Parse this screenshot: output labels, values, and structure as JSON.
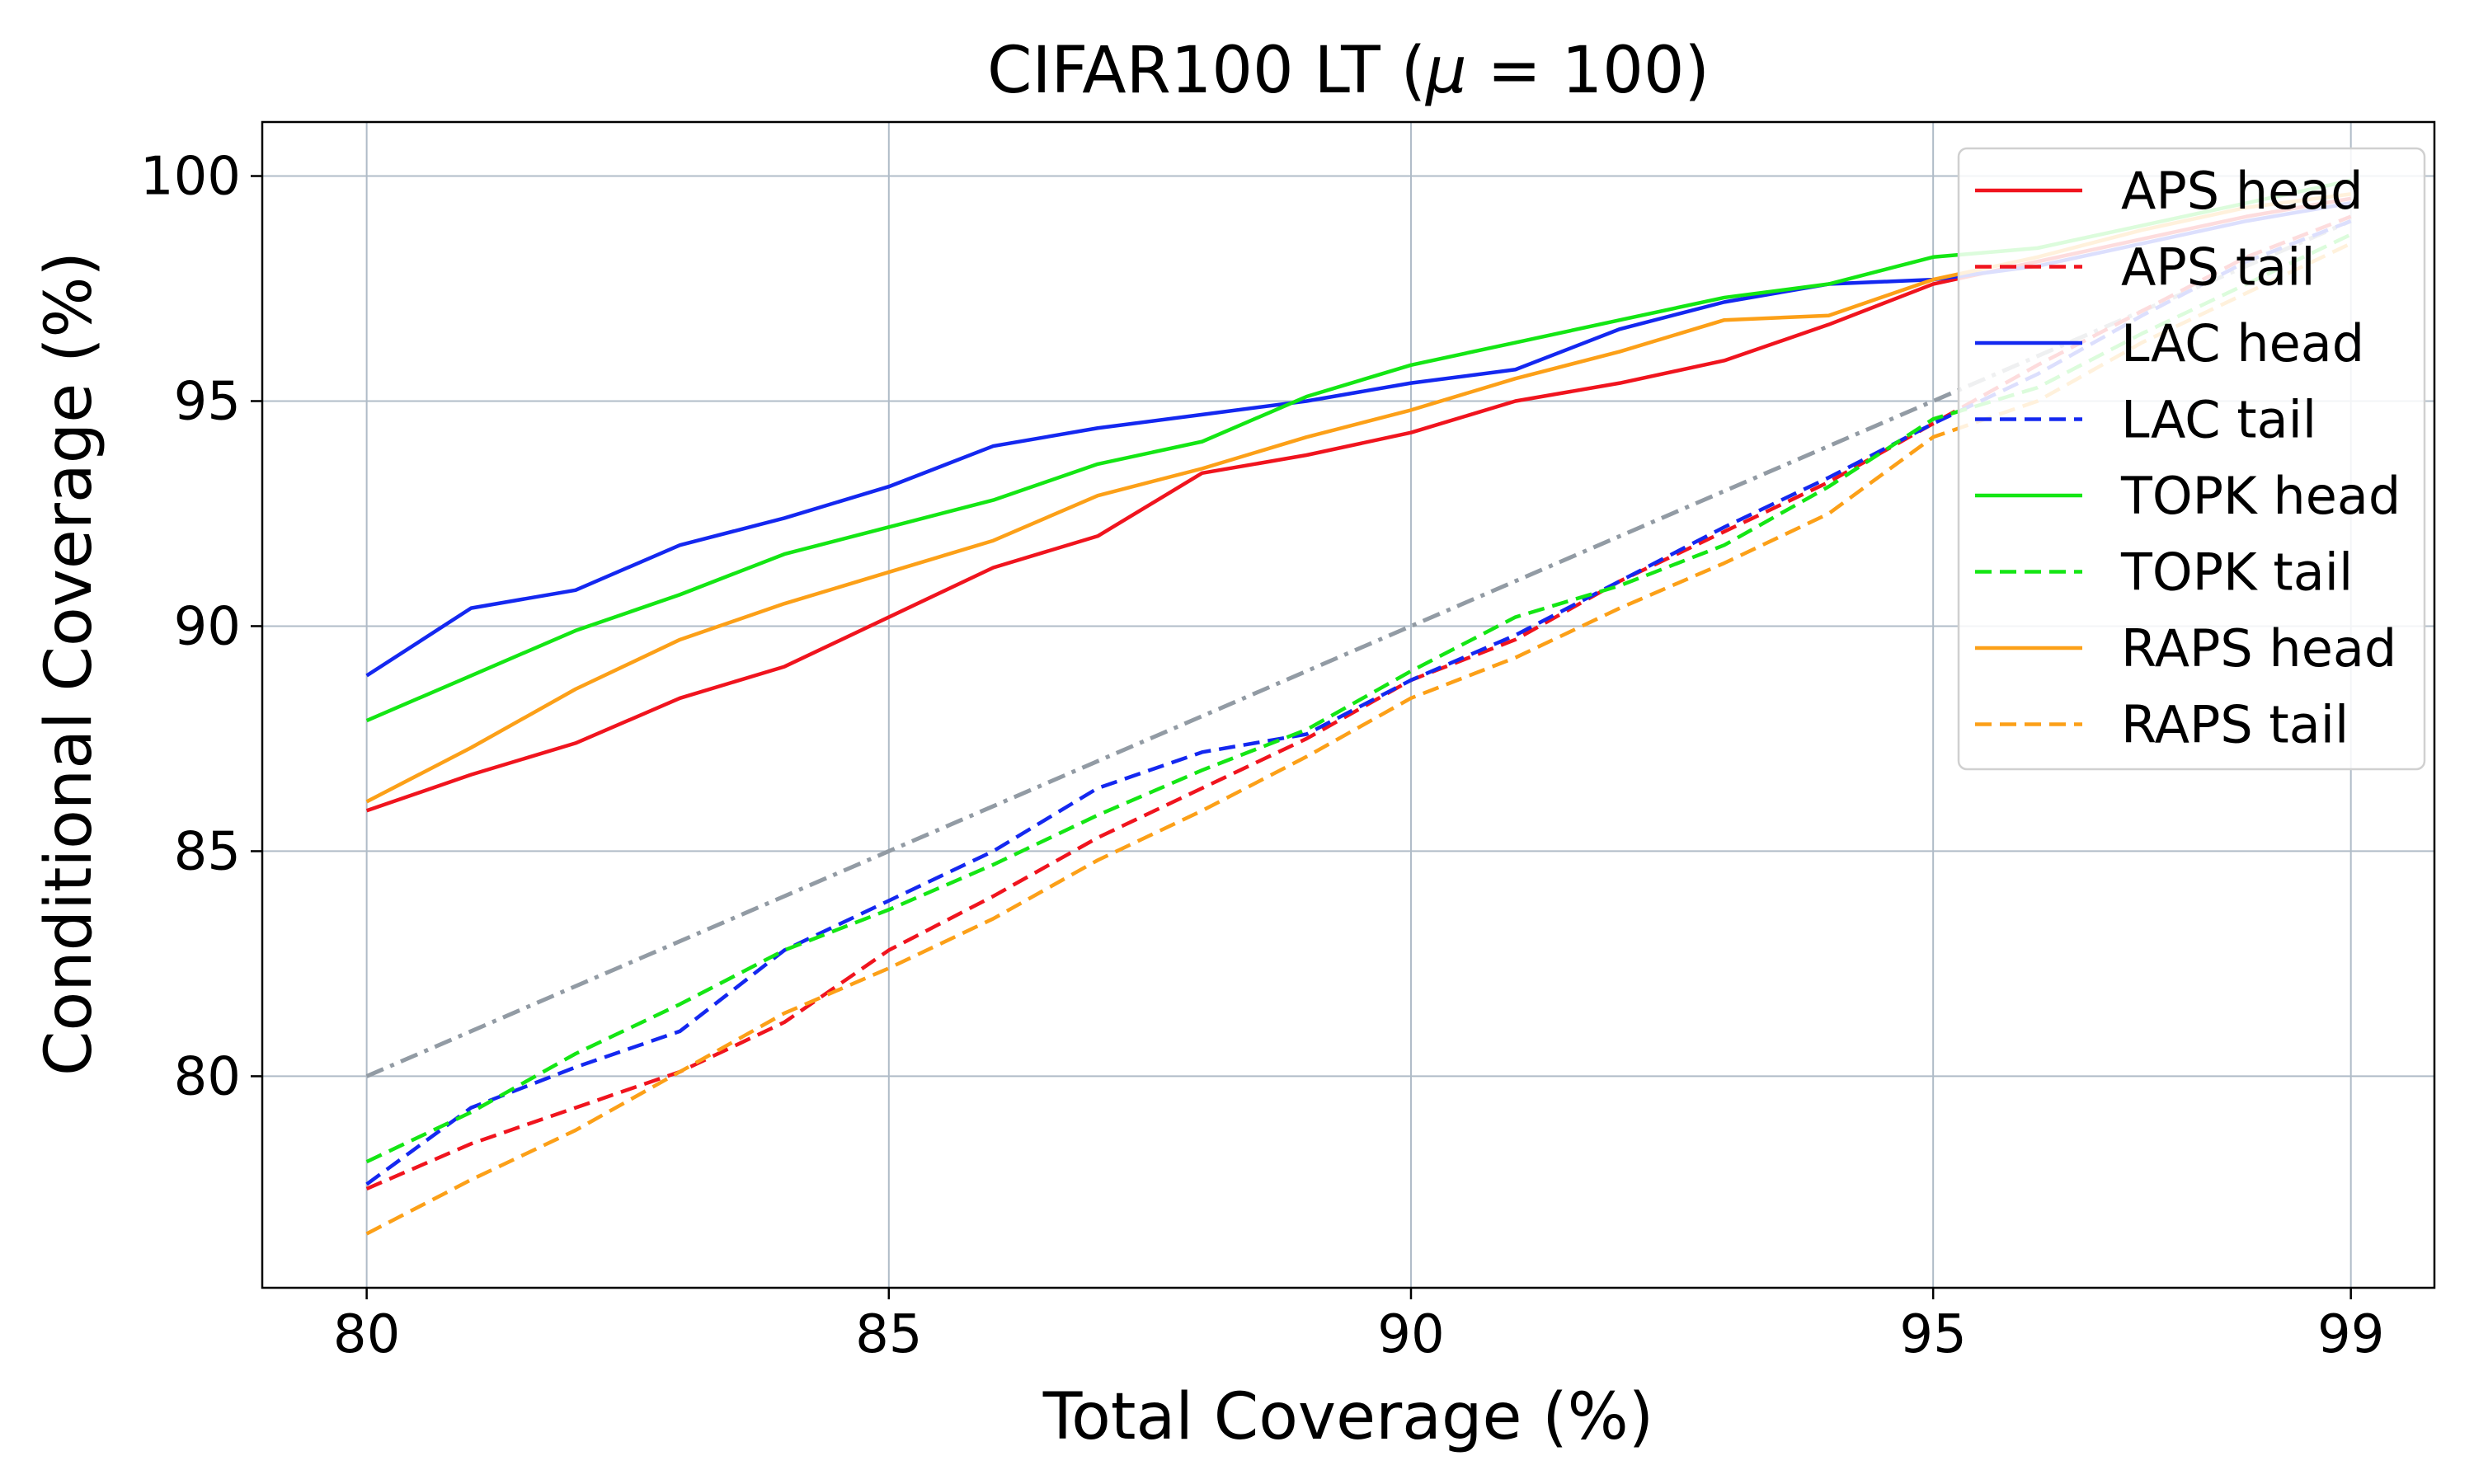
{
  "chart_data": {
    "type": "line",
    "title_prefix": "CIFAR100 LT (",
    "title_mu": "μ",
    "title_suffix": " = 100)",
    "xlabel": "Total Coverage (%)",
    "ylabel": "Conditional Coverage (%)",
    "xlim": [
      79,
      99.8
    ],
    "ylim": [
      75.3,
      101.2
    ],
    "xticks": [
      80,
      85,
      90,
      95,
      99
    ],
    "yticks": [
      80,
      85,
      90,
      95,
      100
    ],
    "grid": true,
    "legend_position": "top-right",
    "x": [
      80,
      81,
      82,
      83,
      84,
      85,
      86,
      87,
      88,
      89,
      90,
      91,
      92,
      93,
      94,
      95,
      96,
      97,
      98,
      99
    ],
    "reference_line": {
      "x": [
        80,
        99
      ],
      "y": [
        80,
        99
      ],
      "color": "#929ba4",
      "style": "dashdot"
    },
    "series": [
      {
        "name": "APS head",
        "color": "#f0141e",
        "style": "solid",
        "values": [
          85.9,
          86.7,
          87.4,
          88.4,
          89.1,
          90.2,
          91.3,
          92.0,
          93.4,
          93.8,
          94.3,
          95.0,
          95.4,
          95.9,
          96.7,
          97.6,
          98.1,
          98.6,
          99.1,
          99.5
        ]
      },
      {
        "name": "APS tail",
        "color": "#f0141e",
        "style": "dashed",
        "values": [
          77.5,
          78.5,
          79.3,
          80.1,
          81.2,
          82.8,
          84.0,
          85.3,
          86.4,
          87.5,
          88.8,
          89.7,
          91.0,
          92.1,
          93.2,
          94.5,
          95.8,
          97.0,
          98.2,
          99.1
        ]
      },
      {
        "name": "LAC head",
        "color": "#1428f0",
        "style": "solid",
        "values": [
          88.9,
          90.4,
          90.8,
          91.8,
          92.4,
          93.1,
          94.0,
          94.4,
          94.7,
          95.0,
          95.4,
          95.7,
          96.6,
          97.2,
          97.6,
          97.7,
          98.0,
          98.5,
          99.0,
          99.4
        ]
      },
      {
        "name": "LAC tail",
        "color": "#1428f0",
        "style": "dashed",
        "values": [
          77.6,
          79.3,
          80.2,
          81.0,
          82.8,
          83.9,
          85.0,
          86.4,
          87.2,
          87.6,
          88.8,
          89.8,
          91.0,
          92.2,
          93.3,
          94.5,
          95.6,
          96.9,
          98.1,
          99.0
        ]
      },
      {
        "name": "TOPK head",
        "color": "#14e614",
        "style": "solid",
        "values": [
          87.9,
          88.9,
          89.9,
          90.7,
          91.6,
          92.2,
          92.8,
          93.6,
          94.1,
          95.1,
          95.8,
          96.3,
          96.8,
          97.3,
          97.6,
          98.2,
          98.4,
          98.9,
          99.4,
          99.9
        ]
      },
      {
        "name": "TOPK tail",
        "color": "#14e614",
        "style": "dashed",
        "values": [
          78.1,
          79.2,
          80.5,
          81.6,
          82.8,
          83.7,
          84.7,
          85.8,
          86.8,
          87.7,
          89.0,
          90.2,
          90.9,
          91.8,
          93.1,
          94.6,
          95.3,
          96.5,
          97.6,
          98.7
        ]
      },
      {
        "name": "RAPS head",
        "color": "#fca018",
        "style": "solid",
        "values": [
          86.1,
          87.3,
          88.6,
          89.7,
          90.5,
          91.2,
          91.9,
          92.9,
          93.5,
          94.2,
          94.8,
          95.5,
          96.1,
          96.8,
          96.9,
          97.7,
          98.2,
          98.8,
          99.3,
          99.6
        ]
      },
      {
        "name": "RAPS tail",
        "color": "#fca018",
        "style": "dashed",
        "values": [
          76.5,
          77.7,
          78.8,
          80.1,
          81.4,
          82.4,
          83.5,
          84.8,
          85.9,
          87.1,
          88.4,
          89.3,
          90.4,
          91.4,
          92.5,
          94.2,
          95.0,
          96.3,
          97.4,
          98.5
        ]
      }
    ]
  }
}
